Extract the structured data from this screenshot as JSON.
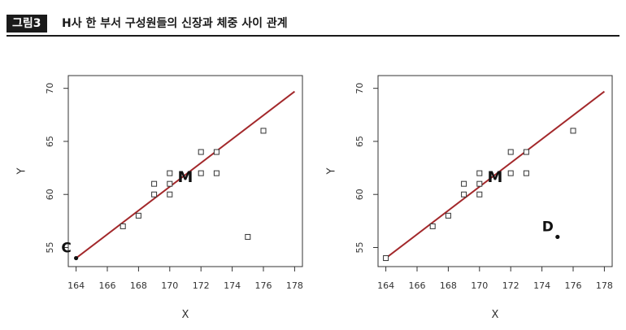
{
  "figure": {
    "badge": "그림3",
    "title": "H사 한 부서 구성원들의 신장과 체중 사이 관계"
  },
  "colors": {
    "line": "#a3282b",
    "text": "#333333",
    "frame": "#333333",
    "marker": "#333333"
  },
  "chart_data": [
    {
      "type": "scatter",
      "title": "",
      "xlabel": "X",
      "ylabel": "Y",
      "xlim": [
        163.5,
        178.5
      ],
      "ylim": [
        53.2,
        71.2
      ],
      "x_ticks": [
        164,
        166,
        168,
        170,
        172,
        174,
        176,
        178
      ],
      "y_ticks": [
        55,
        60,
        65,
        70
      ],
      "grid": false,
      "series": [
        {
          "marker": "square",
          "points": [
            [
              167,
              57
            ],
            [
              168,
              58
            ],
            [
              169,
              60
            ],
            [
              169,
              61
            ],
            [
              170,
              60
            ],
            [
              170,
              61
            ],
            [
              170,
              62
            ],
            [
              172,
              62
            ],
            [
              172,
              64
            ],
            [
              173,
              62
            ],
            [
              173,
              64
            ],
            [
              175,
              56
            ],
            [
              176,
              66
            ]
          ]
        }
      ],
      "labeled_points": [
        {
          "label": "C",
          "x": 164,
          "y": 54,
          "marker": "dot"
        },
        {
          "label": "M",
          "x": 171,
          "y": 61.7,
          "marker": "none"
        }
      ],
      "regression_line": {
        "x": [
          164,
          178
        ],
        "y": [
          54.0,
          69.7
        ]
      }
    },
    {
      "type": "scatter",
      "title": "",
      "xlabel": "X",
      "ylabel": "Y",
      "xlim": [
        163.5,
        178.5
      ],
      "ylim": [
        53.2,
        71.2
      ],
      "x_ticks": [
        164,
        166,
        168,
        170,
        172,
        174,
        176,
        178
      ],
      "y_ticks": [
        55,
        60,
        65,
        70
      ],
      "grid": false,
      "series": [
        {
          "marker": "square",
          "points": [
            [
              164,
              54
            ],
            [
              167,
              57
            ],
            [
              168,
              58
            ],
            [
              169,
              60
            ],
            [
              169,
              61
            ],
            [
              170,
              60
            ],
            [
              170,
              61
            ],
            [
              170,
              62
            ],
            [
              172,
              62
            ],
            [
              172,
              64
            ],
            [
              173,
              62
            ],
            [
              173,
              64
            ],
            [
              176,
              66
            ]
          ]
        }
      ],
      "labeled_points": [
        {
          "label": "D",
          "x": 175,
          "y": 56,
          "marker": "dot"
        },
        {
          "label": "M",
          "x": 171,
          "y": 61.7,
          "marker": "none"
        }
      ],
      "regression_line": {
        "x": [
          164,
          178
        ],
        "y": [
          54.0,
          69.7
        ]
      }
    }
  ]
}
